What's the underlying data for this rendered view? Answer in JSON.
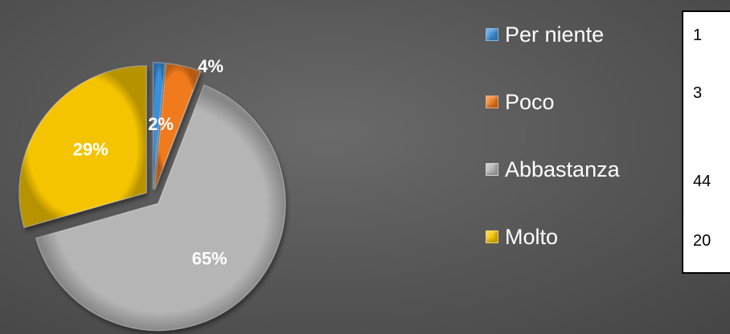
{
  "chart_data": {
    "type": "pie",
    "categories": [
      "Per niente",
      "Poco",
      "Abbastanza",
      "Molto"
    ],
    "values": [
      1,
      3,
      44,
      20
    ],
    "percent_labels": [
      "2%",
      "4%",
      "65%",
      "29%"
    ],
    "colors": [
      "#3b8fd9",
      "#f07a1e",
      "#b5b5b5",
      "#f5c400"
    ],
    "label_colors": [
      "#ffffff",
      "#ffffff",
      "#ffffff",
      "#ffffff"
    ],
    "style": "3d-bevel exploded pie",
    "legend_position": "right"
  },
  "legend": {
    "items": [
      {
        "label": "Per niente",
        "color": "#3b8fd9"
      },
      {
        "label": "Poco",
        "color": "#f07a1e"
      },
      {
        "label": "Abbastanza",
        "color": "#b5b5b5"
      },
      {
        "label": "Molto",
        "color": "#f5c400"
      }
    ]
  },
  "table": {
    "values": [
      "1",
      "3",
      "44",
      "20"
    ]
  }
}
